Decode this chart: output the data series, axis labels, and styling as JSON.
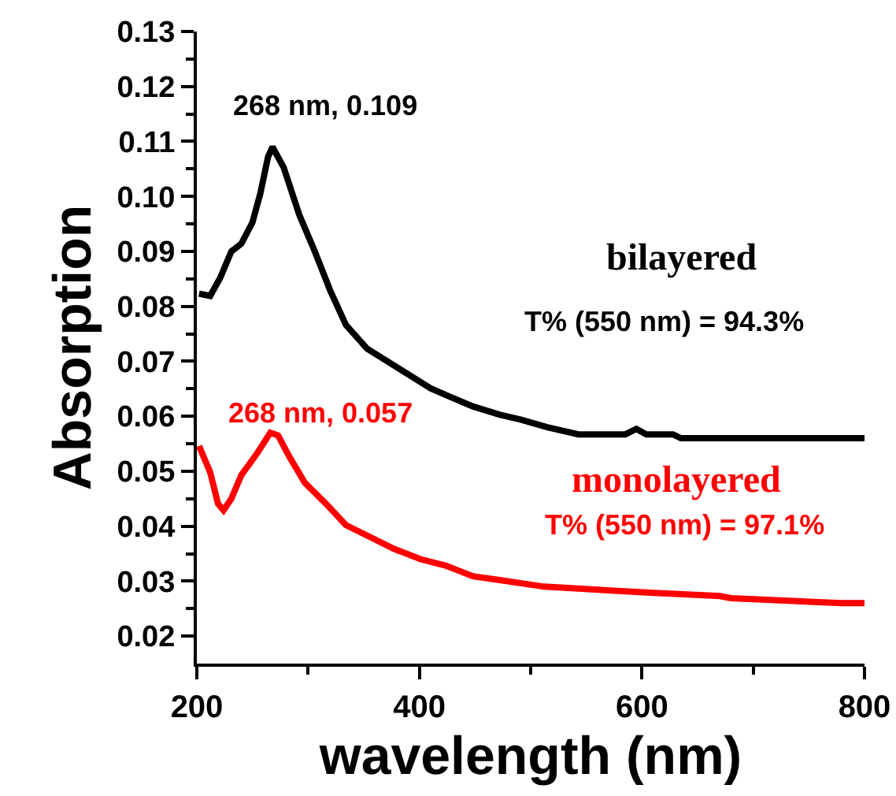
{
  "chart_data": {
    "type": "line",
    "xlabel": "wavelength (nm)",
    "ylabel": "Absorption",
    "xlim": [
      200,
      800
    ],
    "ylim": [
      0.015,
      0.13
    ],
    "xticks": [
      200,
      {
        "value": 300,
        "label": null
      },
      400,
      {
        "value": 500,
        "label": null
      },
      600,
      {
        "value": 700,
        "label": null
      },
      800
    ],
    "yticks": [
      {
        "value": 0.02,
        "label": "0.02"
      },
      {
        "value": 0.025,
        "label": null
      },
      {
        "value": 0.03,
        "label": "0.03"
      },
      {
        "value": 0.035,
        "label": null
      },
      {
        "value": 0.04,
        "label": "0.04"
      },
      {
        "value": 0.045,
        "label": null
      },
      {
        "value": 0.05,
        "label": "0.05"
      },
      {
        "value": 0.055,
        "label": null
      },
      {
        "value": 0.06,
        "label": "0.06"
      },
      {
        "value": 0.065,
        "label": null
      },
      {
        "value": 0.07,
        "label": "0.07"
      },
      {
        "value": 0.075,
        "label": null
      },
      {
        "value": 0.08,
        "label": "0.08"
      },
      {
        "value": 0.085,
        "label": null
      },
      {
        "value": 0.09,
        "label": "0.09"
      },
      {
        "value": 0.095,
        "label": null
      },
      {
        "value": 0.1,
        "label": "0.10"
      },
      {
        "value": 0.105,
        "label": null
      },
      {
        "value": 0.11,
        "label": "0.11"
      },
      {
        "value": 0.115,
        "label": null
      },
      {
        "value": 0.12,
        "label": "0.12"
      },
      {
        "value": 0.125,
        "label": null
      },
      {
        "value": 0.13,
        "label": "0.13"
      }
    ],
    "grid": false,
    "legend": false,
    "marker": "none",
    "line_style": "solid",
    "series": [
      {
        "name": "bilayered",
        "color": "#000000",
        "x": [
          202,
          212,
          221,
          231,
          240,
          250,
          257,
          264,
          268,
          278,
          292,
          306,
          320,
          334,
          353,
          372,
          391,
          410,
          429,
          448,
          472,
          491,
          515,
          543,
          585,
          595,
          604,
          628,
          635,
          800
        ],
        "values": [
          0.0823,
          0.0819,
          0.0852,
          0.09,
          0.0914,
          0.0953,
          0.1005,
          0.1072,
          0.109,
          0.1053,
          0.0967,
          0.09,
          0.0828,
          0.0766,
          0.0723,
          0.0699,
          0.0675,
          0.0651,
          0.0634,
          0.0618,
          0.0603,
          0.0594,
          0.058,
          0.0567,
          0.0567,
          0.0577,
          0.0567,
          0.0567,
          0.056,
          0.056
        ]
      },
      {
        "name": "monolayered",
        "color": "#ff0000",
        "x": [
          202,
          212,
          219,
          224,
          231,
          240,
          254,
          266,
          273,
          283,
          297,
          316,
          334,
          353,
          377,
          401,
          424,
          448,
          472,
          512,
          607,
          670,
          680,
          779,
          800
        ],
        "values": [
          0.0546,
          0.0498,
          0.0441,
          0.0429,
          0.045,
          0.0493,
          0.0532,
          0.057,
          0.0565,
          0.0527,
          0.0479,
          0.0441,
          0.0402,
          0.0383,
          0.0359,
          0.034,
          0.0328,
          0.0309,
          0.0302,
          0.029,
          0.0279,
          0.0273,
          0.0269,
          0.026,
          0.026
        ]
      }
    ],
    "annotations": [
      "268 nm, 0.109",
      "268 nm, 0.057",
      "T% (550 nm) = 94.3%",
      "T% (550 nm) = 97.1%"
    ]
  }
}
